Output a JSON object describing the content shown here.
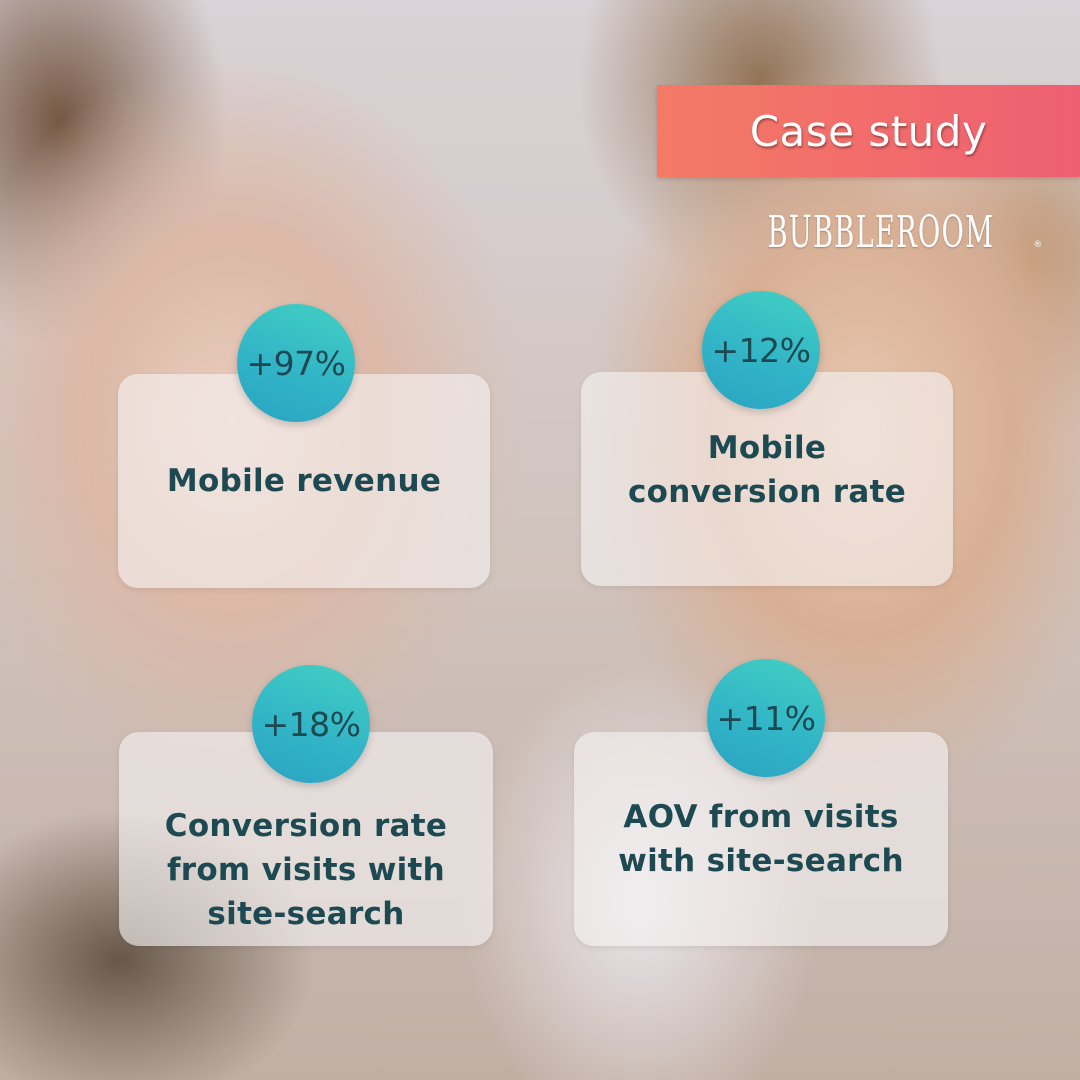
{
  "banner": {
    "label": "Case study"
  },
  "brand": {
    "logo": "BUBBLEROOM",
    "mark": "®"
  },
  "stats": [
    {
      "value": "+97%",
      "label": "Mobile revenue"
    },
    {
      "value": "+12%",
      "label": "Mobile conversion rate"
    },
    {
      "value": "+18%",
      "label": "Conversion rate from visits with site-search"
    },
    {
      "value": "+11%",
      "label": "AOV from visits with site-search"
    }
  ],
  "colors": {
    "banner": "#f16a6c",
    "badge": "#32b5c7",
    "text": "#1d4a52"
  }
}
